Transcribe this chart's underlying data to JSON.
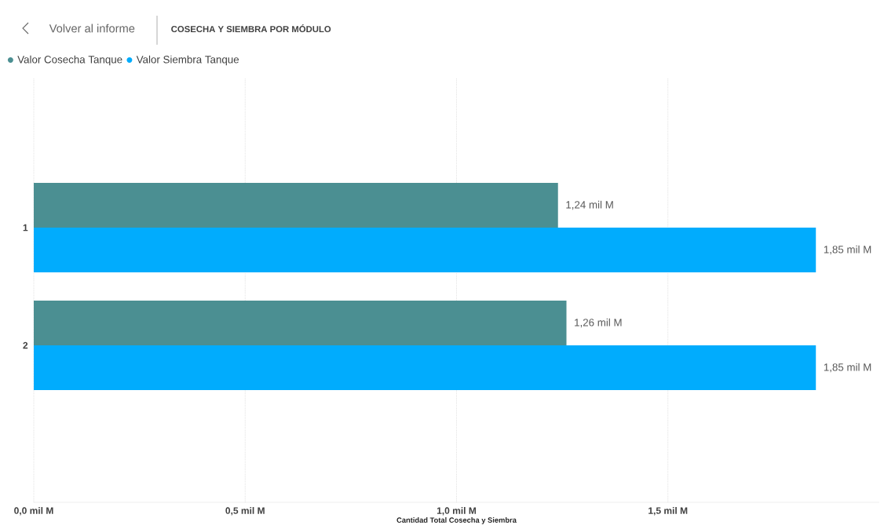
{
  "chart_data": {
    "type": "bar",
    "orientation": "horizontal",
    "title": "COSECHA Y SIEMBRA POR MÓDULO",
    "xlabel": "Cantidad Total Cosecha y Siembra",
    "annotations": [
      "Volver al informe"
    ],
    "categories": [
      "1",
      "2"
    ],
    "series": [
      {
        "name": "Valor Cosecha Tanque",
        "color": "#4b8f92",
        "values": [
          1.24,
          1.26
        ],
        "value_labels": [
          "1,24 mil M",
          "1,26 mil M"
        ]
      },
      {
        "name": "Valor Siembra Tanque",
        "color": "#01acfd",
        "values": [
          1.85,
          1.85
        ],
        "value_labels": [
          "1,85 mil M",
          "1,85 mil M"
        ]
      }
    ],
    "xlim": [
      0,
      2
    ],
    "xticks": [
      {
        "value": 0,
        "label": "0,0 mil M"
      },
      {
        "value": 0.5,
        "label": "0,5 mil M"
      },
      {
        "value": 1,
        "label": "1,0 mil M"
      },
      {
        "value": 1.5,
        "label": "1,5 mil M"
      }
    ],
    "grid": "x",
    "legend": "top left"
  }
}
